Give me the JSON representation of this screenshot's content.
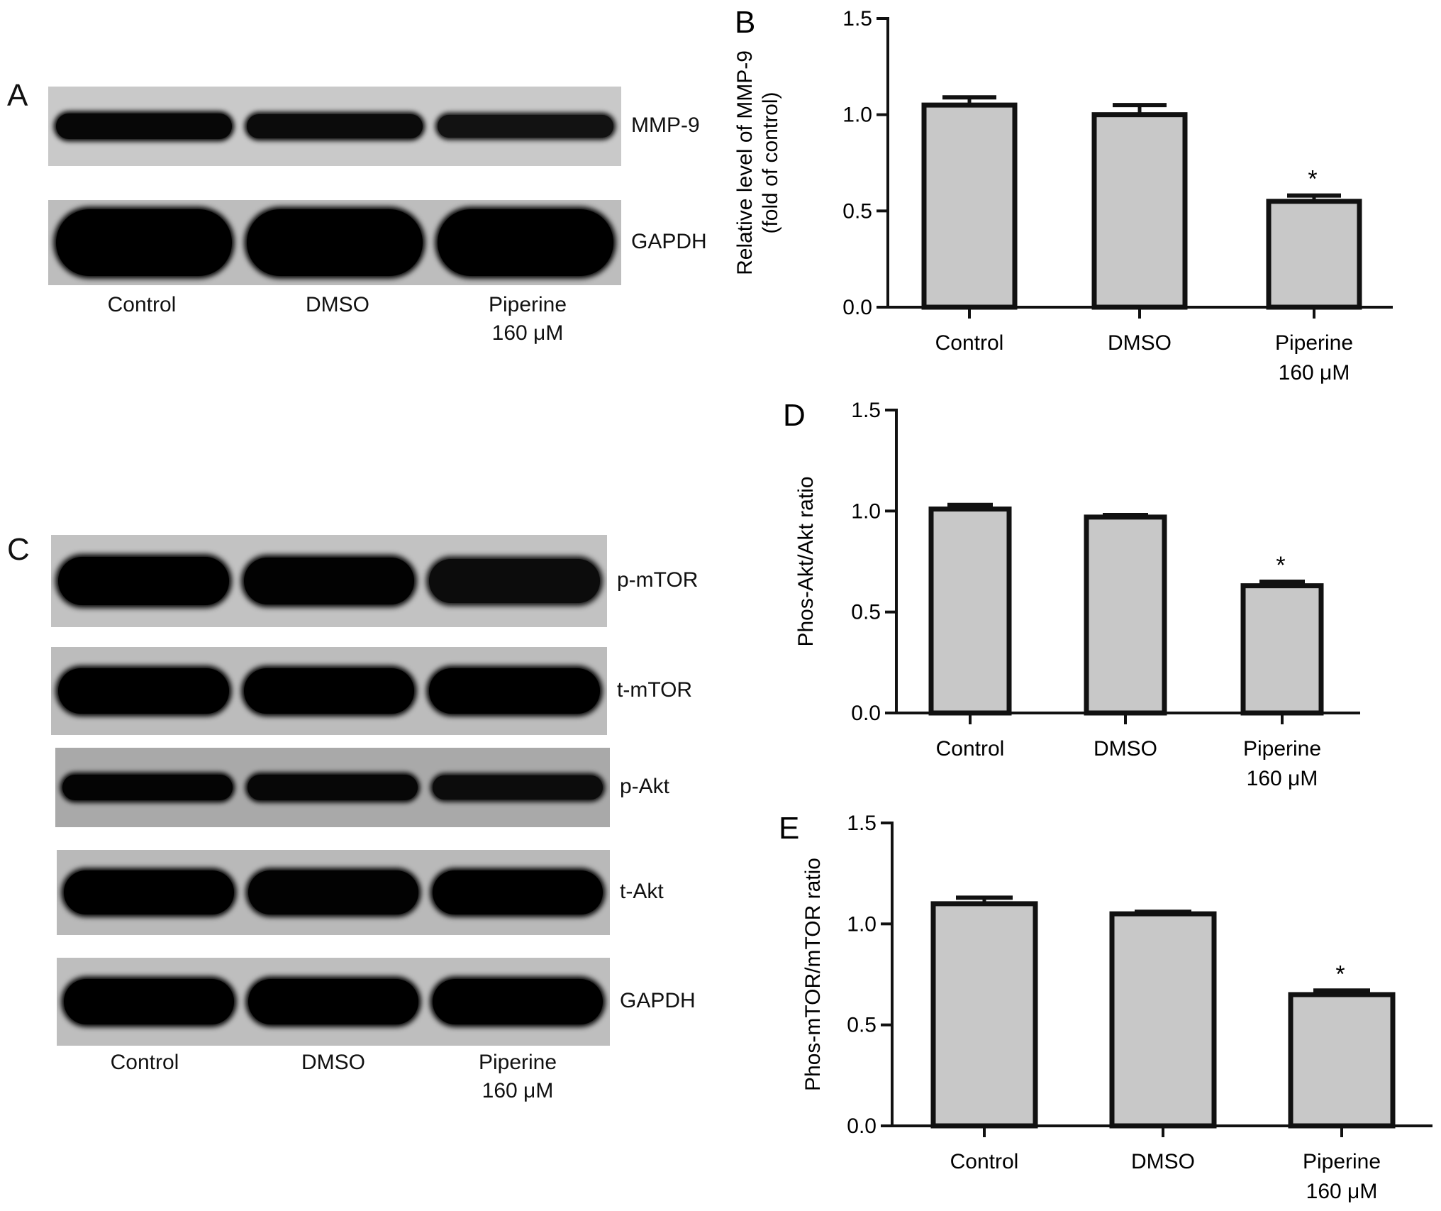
{
  "panels": {
    "A": {
      "letter": "A",
      "bands": [
        {
          "label": "MMP-9",
          "intensity": [
            0.82,
            0.72,
            0.55
          ],
          "kind": "thin"
        },
        {
          "label": "GAPDH",
          "intensity": [
            1.0,
            1.0,
            1.0
          ],
          "kind": "fat"
        }
      ],
      "lanes": [
        {
          "line1": "Control",
          "line2": ""
        },
        {
          "line1": "DMSO",
          "line2": ""
        },
        {
          "line1": "Piperine",
          "line2": "160 μM"
        }
      ]
    },
    "C": {
      "letter": "C",
      "bands": [
        {
          "label": "p-mTOR",
          "intensity": [
            1.0,
            0.95,
            0.7
          ],
          "kind": "mid"
        },
        {
          "label": "t-mTOR",
          "intensity": [
            1.0,
            1.0,
            1.0
          ],
          "kind": "mid"
        },
        {
          "label": "p-Akt",
          "intensity": [
            0.9,
            0.82,
            0.7
          ],
          "kind": "thin"
        },
        {
          "label": "t-Akt",
          "intensity": [
            1.0,
            0.95,
            1.0
          ],
          "kind": "mid"
        },
        {
          "label": "GAPDH",
          "intensity": [
            1.0,
            1.0,
            1.0
          ],
          "kind": "mid"
        }
      ],
      "lanes": [
        {
          "line1": "Control",
          "line2": ""
        },
        {
          "line1": "DMSO",
          "line2": ""
        },
        {
          "line1": "Piperine",
          "line2": "160 μM"
        }
      ]
    }
  },
  "chart_data": [
    {
      "panel": "B",
      "type": "bar",
      "categories": [
        "Control",
        "DMSO",
        "Piperine\n160 μM"
      ],
      "values": [
        1.05,
        1.0,
        0.55
      ],
      "errors": [
        0.04,
        0.05,
        0.03
      ],
      "significance": [
        "",
        "",
        "*"
      ],
      "ylabel_lines": [
        "Relative level of MMP-9",
        "(fold of control)"
      ],
      "ylim": [
        0.0,
        1.5
      ],
      "yticks": [
        "0.0",
        "0.5",
        "1.0",
        "1.5"
      ],
      "bar_color": "#c8c8c8"
    },
    {
      "panel": "D",
      "type": "bar",
      "categories": [
        "Control",
        "DMSO",
        "Piperine\n160 μM"
      ],
      "values": [
        1.01,
        0.97,
        0.63
      ],
      "errors": [
        0.02,
        0.01,
        0.02
      ],
      "significance": [
        "",
        "",
        "*"
      ],
      "ylabel_lines": [
        "Phos-Akt/Akt ratio"
      ],
      "ylim": [
        0.0,
        1.5
      ],
      "yticks": [
        "0.0",
        "0.5",
        "1.0",
        "1.5"
      ],
      "bar_color": "#c8c8c8"
    },
    {
      "panel": "E",
      "type": "bar",
      "categories": [
        "Control",
        "DMSO",
        "Piperine\n160 μM"
      ],
      "values": [
        1.1,
        1.05,
        0.65
      ],
      "errors": [
        0.03,
        0.01,
        0.02
      ],
      "significance": [
        "",
        "",
        "*"
      ],
      "ylabel_lines": [
        "Phos-mTOR/mTOR ratio"
      ],
      "ylim": [
        0.0,
        1.5
      ],
      "yticks": [
        "0.0",
        "0.5",
        "1.0",
        "1.5"
      ],
      "bar_color": "#c8c8c8"
    }
  ]
}
